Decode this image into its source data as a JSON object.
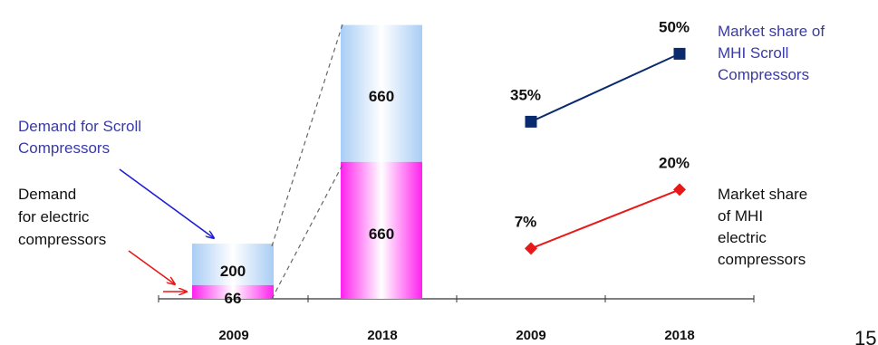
{
  "chart_data": [
    {
      "type": "bar",
      "stacked": true,
      "categories": [
        "2009",
        "2018"
      ],
      "series": [
        {
          "name": "Demand for electric compressors",
          "values": [
            66,
            660
          ]
        },
        {
          "name": "Demand for Scroll Compressors",
          "values": [
            200,
            660
          ]
        }
      ],
      "data_labels": {
        "electric": [
          "66",
          "660"
        ],
        "scroll": [
          "200",
          "660"
        ]
      },
      "annotations": {
        "scroll_label": [
          "Demand for Scroll",
          "Compressors"
        ],
        "electric_label": [
          "Demand",
          "for electric",
          "compressors"
        ]
      },
      "colors": {
        "scroll": "#a9cdf5",
        "electric": "#ff22ee",
        "scroll_arrow": "#1f1fd6",
        "electric_arrow": "#e81818",
        "dash": "#666666"
      }
    },
    {
      "type": "line",
      "categories": [
        "2009",
        "2018"
      ],
      "series": [
        {
          "name": "Market share of MHI Scroll Compressors",
          "values": [
            35,
            50
          ],
          "labels": [
            "35%",
            "50%"
          ],
          "color": "#0a2a6e",
          "marker": "square"
        },
        {
          "name": "Market share of MHI electric compressors",
          "values": [
            7,
            20
          ],
          "labels": [
            "7%",
            "20%"
          ],
          "color": "#e81818",
          "marker": "diamond"
        }
      ],
      "legend_lines": {
        "scroll": [
          "Market share of",
          "MHI Scroll",
          "Compressors"
        ],
        "electric": [
          "Market share",
          "of MHI",
          "electric",
          "compressors"
        ]
      },
      "legend_colors": {
        "scroll": "#3a3aa8",
        "electric": "#111111"
      }
    }
  ],
  "page_number": "15"
}
